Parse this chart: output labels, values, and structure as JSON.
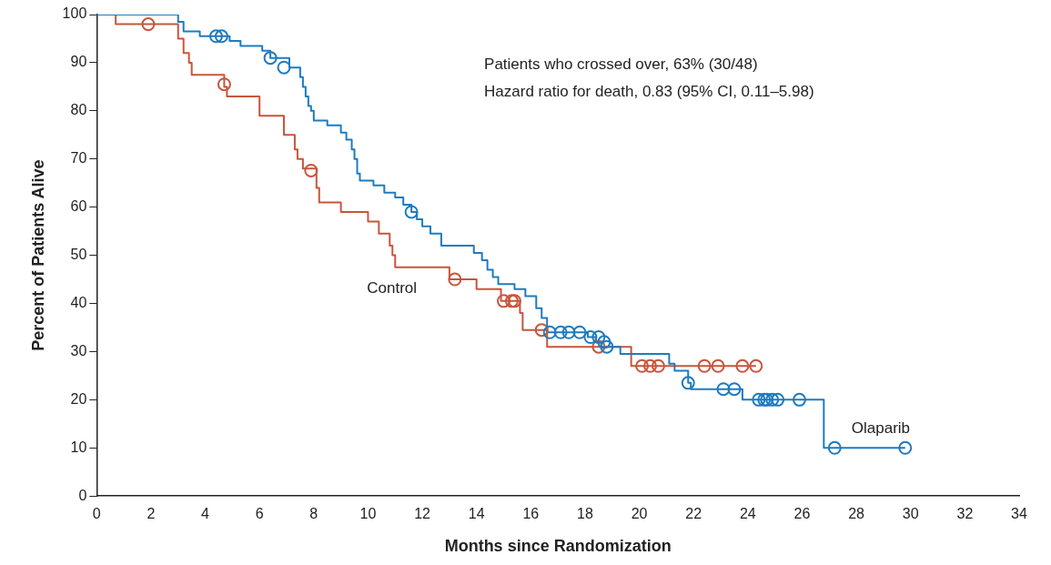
{
  "chart_data": {
    "type": "step",
    "xlabel": "Months since Randomization",
    "ylabel": "Percent of Patients Alive",
    "xlim": [
      0,
      34
    ],
    "xticks": [
      0,
      2,
      4,
      6,
      8,
      10,
      12,
      14,
      16,
      18,
      20,
      22,
      24,
      26,
      28,
      30,
      32,
      34
    ],
    "ylim": [
      0,
      100
    ],
    "yticks": [
      0,
      10,
      20,
      30,
      40,
      50,
      60,
      70,
      80,
      90,
      100
    ],
    "grid": false,
    "legend": false,
    "series": [
      {
        "name": "Control",
        "color": "#c8553d",
        "marker": "none",
        "x": [
          0,
          0.7,
          3.0,
          3.2,
          3.4,
          3.5,
          4.7,
          4.8,
          6.0,
          6.9,
          7.3,
          7.4,
          7.6,
          8.1,
          8.2,
          9.0,
          10.0,
          10.4,
          10.8,
          10.9,
          11.0,
          13.0,
          14.0,
          14.9,
          15.6,
          15.7,
          16.6,
          19.7,
          24.3
        ],
        "values": [
          100,
          98,
          95,
          92,
          90,
          87.5,
          85,
          83,
          79,
          75,
          72,
          70,
          68,
          64,
          61,
          59,
          57,
          54.5,
          52,
          50,
          47.5,
          45,
          43,
          40.5,
          38,
          34.5,
          31,
          27,
          27
        ]
      },
      {
        "name": "Olaparib",
        "color": "#1f7bbf",
        "marker": "none",
        "x": [
          0,
          3.0,
          3.2,
          3.8,
          4.9,
          5.3,
          6.1,
          6.4,
          7.1,
          7.5,
          7.6,
          7.7,
          7.8,
          7.9,
          8.0,
          8.5,
          9.0,
          9.2,
          9.4,
          9.5,
          9.6,
          9.7,
          10.2,
          10.6,
          11.0,
          11.3,
          11.6,
          11.8,
          12.0,
          12.3,
          12.7,
          13.9,
          14.2,
          14.4,
          14.6,
          14.8,
          15.4,
          15.8,
          16.2,
          16.4,
          16.6,
          18.1,
          18.4,
          18.6,
          19.3,
          21.1,
          21.3,
          21.8,
          21.9,
          23.8,
          26.8,
          29.8
        ],
        "values": [
          100,
          98.5,
          96.5,
          95.5,
          94.5,
          93.5,
          92.5,
          91,
          89,
          87,
          85,
          83,
          81,
          80,
          78,
          77,
          75.5,
          74,
          72,
          70,
          67,
          65.5,
          64.5,
          63,
          62,
          60.5,
          59,
          57.5,
          56,
          54.5,
          52,
          50.5,
          49,
          47,
          45.5,
          44,
          43,
          41.5,
          39,
          37,
          34,
          33,
          32,
          31,
          29.5,
          27.5,
          26,
          23.5,
          22.2,
          20,
          10,
          10
        ]
      },
      {
        "type": "scatter",
        "color": "#c8553d",
        "marker": "circle",
        "x": [
          1.9,
          4.7,
          7.9,
          13.2,
          15.0,
          15.3,
          15.4,
          16.4,
          18.5,
          20.1,
          20.4,
          20.7,
          22.4,
          22.9,
          23.8,
          24.3
        ],
        "values": [
          98,
          85.5,
          67.6,
          45,
          40.5,
          40.5,
          40.5,
          34.5,
          31,
          27,
          27,
          27,
          27,
          27,
          27,
          27
        ]
      },
      {
        "type": "scatter",
        "color": "#1f7bbf",
        "marker": "circle",
        "x": [
          4.4,
          4.6,
          6.4,
          6.9,
          11.6,
          16.7,
          17.1,
          17.4,
          17.8,
          18.2,
          18.5,
          18.7,
          18.8,
          21.8,
          23.1,
          23.5,
          24.4,
          24.6,
          24.7,
          24.9,
          25.1,
          25.9,
          27.2,
          29.8
        ],
        "values": [
          95.5,
          95.5,
          91,
          89,
          59,
          34,
          34,
          34,
          34,
          33,
          33,
          32,
          31,
          23.5,
          22.2,
          22.2,
          20,
          20,
          20,
          20,
          20,
          20,
          10,
          10
        ]
      }
    ],
    "annotations": [
      "Patients who crossed over, 63% (30/48)",
      "Hazard ratio for death, 0.83 (95% CI, 0.11–5.98)"
    ]
  }
}
